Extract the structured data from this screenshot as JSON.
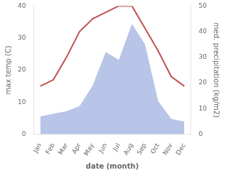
{
  "chart_data": {
    "type": "line",
    "categories": [
      "Jan",
      "Feb",
      "Mar",
      "Apr",
      "May",
      "Jun",
      "Jul",
      "Aug",
      "Sep",
      "Oct",
      "Nov",
      "Dec"
    ],
    "series": [
      {
        "type": "area",
        "color": "#b8c4e8",
        "axis": "y2",
        "values": [
          7,
          8,
          9,
          11,
          19,
          32,
          29,
          43,
          35,
          13,
          6,
          5
        ]
      },
      {
        "type": "line",
        "color": "#c0504d",
        "values": [
          15,
          17,
          24,
          32,
          36,
          38,
          40,
          40,
          33,
          26,
          18,
          15
        ]
      }
    ],
    "xlabel": "date (month)",
    "ylabel": "max temp (C)",
    "y2label": "med. precipitation (kg/m2)",
    "ylim": [
      0,
      40
    ],
    "yticks": [
      0,
      10,
      20,
      30,
      40
    ],
    "y2lim": [
      0,
      50
    ],
    "y2ticks": [
      0,
      10,
      20,
      30,
      40,
      50
    ],
    "grid": false
  }
}
